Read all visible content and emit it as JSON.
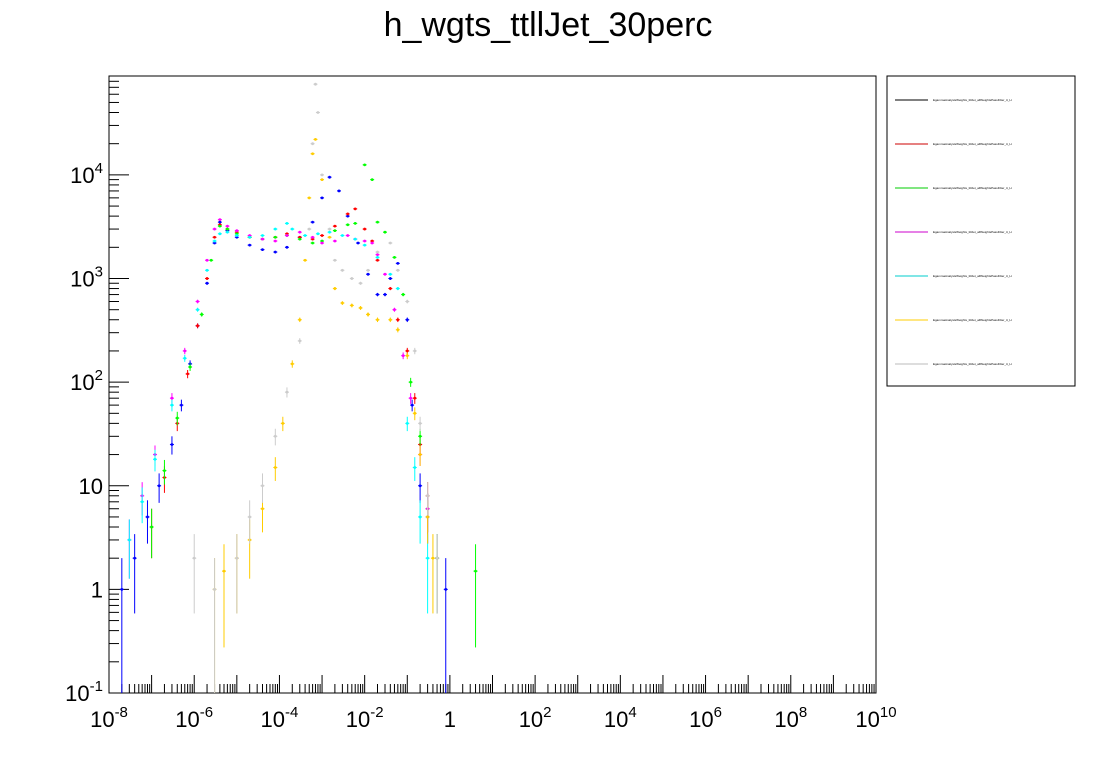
{
  "chart_data": {
    "type": "scatter",
    "title": "h_wgts_ttllJet_30perc",
    "xscale": "log",
    "yscale": "log",
    "xlim": [
      1e-08,
      10000000000.0
    ],
    "ylim": [
      0.1,
      90000
    ],
    "x_tick_labels": [
      "10^-8",
      "10^-6",
      "10^-4",
      "10^-2",
      "1",
      "10^2",
      "10^4",
      "10^6",
      "10^8",
      "10^10"
    ],
    "y_tick_labels": [
      "10^-1",
      "1",
      "10",
      "10^2",
      "10^3",
      "10^4"
    ],
    "legend_position": "right",
    "series": [
      {
        "color": "#0000ff",
        "points": [
          [
            2e-08,
            1
          ],
          [
            4e-08,
            2
          ],
          [
            8e-08,
            5
          ],
          [
            1.5e-07,
            10
          ],
          [
            3e-07,
            25
          ],
          [
            5e-07,
            60
          ],
          [
            8e-07,
            150
          ],
          [
            1.2e-06,
            350
          ],
          [
            2e-06,
            900
          ],
          [
            3e-06,
            2200
          ],
          [
            4e-06,
            3500
          ],
          [
            6e-06,
            2900
          ],
          [
            1e-05,
            2500
          ],
          [
            2e-05,
            2100
          ],
          [
            4e-05,
            1900
          ],
          [
            8e-05,
            1800
          ],
          [
            0.00015,
            2000
          ],
          [
            0.0003,
            2500
          ],
          [
            0.0006,
            3500
          ],
          [
            0.001,
            6000
          ],
          [
            0.0015,
            9500
          ],
          [
            0.0025,
            7000
          ],
          [
            0.004,
            4000
          ],
          [
            0.007,
            2200
          ],
          [
            0.012,
            1100
          ],
          [
            0.02,
            700
          ],
          [
            0.03,
            700
          ],
          [
            0.04,
            1000
          ],
          [
            0.06,
            1400
          ],
          [
            0.1,
            400
          ],
          [
            0.13,
            60
          ],
          [
            0.2,
            10
          ],
          [
            0.3,
            5
          ],
          [
            0.5,
            2
          ],
          [
            0.8,
            1
          ]
        ]
      },
      {
        "color": "#ff0000",
        "points": [
          [
            1e-07,
            4
          ],
          [
            2e-07,
            12
          ],
          [
            4e-07,
            40
          ],
          [
            7e-07,
            120
          ],
          [
            1.2e-06,
            350
          ],
          [
            2e-06,
            1000
          ],
          [
            3e-06,
            2500
          ],
          [
            4e-06,
            3300
          ],
          [
            6e-06,
            3000
          ],
          [
            1e-05,
            2800
          ],
          [
            2e-05,
            2500
          ],
          [
            4e-05,
            2400
          ],
          [
            8e-05,
            2500
          ],
          [
            0.00015,
            2700
          ],
          [
            0.0003,
            2500
          ],
          [
            0.0006,
            2400
          ],
          [
            0.001,
            2600
          ],
          [
            0.002,
            3200
          ],
          [
            0.004,
            4200
          ],
          [
            0.006,
            4700
          ],
          [
            0.01,
            3000
          ],
          [
            0.015,
            2300
          ],
          [
            0.02,
            1500
          ],
          [
            0.04,
            800
          ],
          [
            0.06,
            400
          ],
          [
            0.1,
            200
          ],
          [
            0.15,
            70
          ],
          [
            0.2,
            25
          ],
          [
            0.3,
            8
          ],
          [
            0.5,
            2
          ]
        ]
      },
      {
        "color": "#00ff00",
        "points": [
          [
            1e-07,
            4
          ],
          [
            2e-07,
            14
          ],
          [
            4e-07,
            45
          ],
          [
            8e-07,
            140
          ],
          [
            1.5e-06,
            450
          ],
          [
            2.5e-06,
            1500
          ],
          [
            4e-06,
            3200
          ],
          [
            6e-06,
            3000
          ],
          [
            1e-05,
            2700
          ],
          [
            2e-05,
            2500
          ],
          [
            4e-05,
            2400
          ],
          [
            8e-05,
            2500
          ],
          [
            0.00015,
            2600
          ],
          [
            0.0003,
            2400
          ],
          [
            0.0006,
            2200
          ],
          [
            0.001,
            2300
          ],
          [
            0.002,
            2900
          ],
          [
            0.004,
            3300
          ],
          [
            0.006,
            3400
          ],
          [
            0.01,
            12500
          ],
          [
            0.015,
            9000
          ],
          [
            0.02,
            3500
          ],
          [
            0.03,
            2800
          ],
          [
            0.05,
            1600
          ],
          [
            0.08,
            700
          ],
          [
            0.12,
            100
          ],
          [
            0.2,
            30
          ],
          [
            0.3,
            6
          ],
          [
            0.5,
            2
          ],
          [
            4,
            1.5
          ]
        ]
      },
      {
        "color": "#ff00ff",
        "points": [
          [
            3e-08,
            3
          ],
          [
            6e-08,
            8
          ],
          [
            1.2e-07,
            20
          ],
          [
            3e-07,
            70
          ],
          [
            6e-07,
            200
          ],
          [
            1.2e-06,
            600
          ],
          [
            2e-06,
            1500
          ],
          [
            3e-06,
            3000
          ],
          [
            4e-06,
            3700
          ],
          [
            6e-06,
            3200
          ],
          [
            1e-05,
            2900
          ],
          [
            2e-05,
            2600
          ],
          [
            4e-05,
            2400
          ],
          [
            8e-05,
            2300
          ],
          [
            0.00015,
            2600
          ],
          [
            0.0003,
            2800
          ],
          [
            0.0006,
            2500
          ],
          [
            0.001,
            2200
          ],
          [
            0.002,
            2300
          ],
          [
            0.004,
            2600
          ],
          [
            0.006,
            2400
          ],
          [
            0.01,
            2300
          ],
          [
            0.015,
            2200
          ],
          [
            0.02,
            1700
          ],
          [
            0.03,
            1100
          ],
          [
            0.05,
            500
          ],
          [
            0.08,
            180
          ],
          [
            0.12,
            70
          ],
          [
            0.2,
            20
          ],
          [
            0.3,
            6
          ]
        ]
      },
      {
        "color": "#00ffff",
        "points": [
          [
            3e-08,
            3
          ],
          [
            6e-08,
            7
          ],
          [
            1.2e-07,
            18
          ],
          [
            3e-07,
            60
          ],
          [
            6e-07,
            170
          ],
          [
            1.2e-06,
            500
          ],
          [
            2e-06,
            1200
          ],
          [
            3e-06,
            2300
          ],
          [
            4e-06,
            2700
          ],
          [
            6e-06,
            2800
          ],
          [
            1e-05,
            2600
          ],
          [
            2e-05,
            2500
          ],
          [
            4e-05,
            2600
          ],
          [
            8e-05,
            3000
          ],
          [
            0.00015,
            3400
          ],
          [
            0.0002,
            3000
          ],
          [
            0.0004,
            2600
          ],
          [
            0.0008,
            2700
          ],
          [
            0.0015,
            2800
          ],
          [
            0.003,
            2600
          ],
          [
            0.006,
            2400
          ],
          [
            0.01,
            2100
          ],
          [
            0.02,
            1600
          ],
          [
            0.04,
            1100
          ],
          [
            0.06,
            800
          ],
          [
            0.1,
            40
          ],
          [
            0.15,
            15
          ],
          [
            0.2,
            5
          ],
          [
            0.3,
            2
          ]
        ]
      },
      {
        "color": "#ffcc00",
        "points": [
          [
            3e-06,
            1
          ],
          [
            5e-06,
            1.5
          ],
          [
            1e-05,
            2
          ],
          [
            2e-05,
            3
          ],
          [
            4e-05,
            6
          ],
          [
            8e-05,
            15
          ],
          [
            0.00012,
            40
          ],
          [
            0.0002,
            150
          ],
          [
            0.0003,
            400
          ],
          [
            0.0004,
            1500
          ],
          [
            0.0005,
            6000
          ],
          [
            0.0006,
            16000
          ],
          [
            0.0007,
            22000
          ],
          [
            0.001,
            9000
          ],
          [
            0.0015,
            2500
          ],
          [
            0.002,
            800
          ],
          [
            0.003,
            580
          ],
          [
            0.005,
            550
          ],
          [
            0.008,
            520
          ],
          [
            0.012,
            450
          ],
          [
            0.02,
            400
          ],
          [
            0.04,
            400
          ],
          [
            0.06,
            320
          ],
          [
            0.1,
            180
          ],
          [
            0.15,
            50
          ],
          [
            0.2,
            20
          ],
          [
            0.3,
            5
          ],
          [
            0.4,
            2
          ]
        ]
      },
      {
        "color": "#cccccc",
        "points": [
          [
            1e-06,
            2
          ],
          [
            3e-06,
            1
          ],
          [
            1e-05,
            2
          ],
          [
            2e-05,
            5
          ],
          [
            4e-05,
            10
          ],
          [
            8e-05,
            30
          ],
          [
            0.00015,
            80
          ],
          [
            0.0003,
            250
          ],
          [
            0.0005,
            3000
          ],
          [
            0.0006,
            20000
          ],
          [
            0.0007,
            75000
          ],
          [
            0.0008,
            40000
          ],
          [
            0.001,
            10000
          ],
          [
            0.0015,
            3000
          ],
          [
            0.002,
            1500
          ],
          [
            0.003,
            1200
          ],
          [
            0.005,
            1000
          ],
          [
            0.008,
            900
          ],
          [
            0.012,
            1200
          ],
          [
            0.02,
            1800
          ],
          [
            0.04,
            2200
          ],
          [
            0.06,
            1200
          ],
          [
            0.1,
            600
          ],
          [
            0.15,
            200
          ],
          [
            0.2,
            40
          ],
          [
            0.3,
            8
          ],
          [
            0.5,
            2
          ]
        ]
      }
    ]
  },
  "legend": {
    "entries": [
      {
        "label": "EgammaAnalysisWeights_ttllJet_allWeightsPassFilter_tt_Lt",
        "color": "#000000"
      },
      {
        "label": "EgammaAnalysisWeights_ttllJet_allWeightsPassFilter_tt_Lt",
        "color": "#cc0000"
      },
      {
        "label": "EgammaAnalysisWeights_ttllJet_allWeightsPassFilter_tt_Lt",
        "color": "#00cc00"
      },
      {
        "label": "EgammaAnalysisWeights_ttllJet_allWeightsPassFilter_tt_Lt",
        "color": "#cc00cc"
      },
      {
        "label": "EgammaAnalysisWeights_ttllJet_allWeightsPassFilter_tt_Lt",
        "color": "#00cccc"
      },
      {
        "label": "EgammaAnalysisWeights_ttllJet_allWeightsPassFilter_tt_Lt",
        "color": "#ffcc00"
      },
      {
        "label": "EgammaAnalysisWeights_ttllJet_allWeightsPassFilter_tt_Lt",
        "color": "#bbbbbb"
      }
    ]
  }
}
